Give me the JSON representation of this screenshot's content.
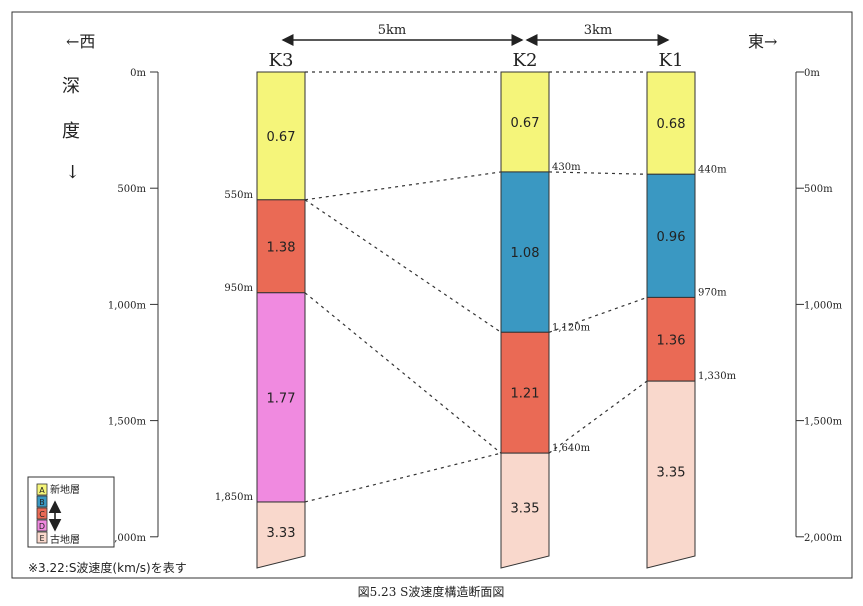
{
  "directions": {
    "west": "←西",
    "east": "東→"
  },
  "depth_label": [
    "深",
    "度",
    "↓"
  ],
  "distances": [
    {
      "label": "5km",
      "from": "K3",
      "to": "K2"
    },
    {
      "label": "3km",
      "from": "K2",
      "to": "K1"
    }
  ],
  "scale": {
    "max_depth_m": 2000,
    "ticks": [
      {
        "value": 0,
        "label": "0m"
      },
      {
        "value": 500,
        "label": "500m"
      },
      {
        "value": 1000,
        "label": "1,000m"
      },
      {
        "value": 1500,
        "label": "1,500m"
      },
      {
        "value": 2000,
        "label": "2,000m"
      }
    ]
  },
  "layer_colors": {
    "A": "#f5f57a",
    "B": "#3a98c2",
    "C": "#ea6a55",
    "D": "#f08ae0",
    "E": "#f9d8cc"
  },
  "boreholes": [
    {
      "id": "K3",
      "layers": [
        {
          "code": "A",
          "top": 0,
          "bottom": 550,
          "velocity": "0.67"
        },
        {
          "code": "C",
          "top": 550,
          "bottom": 950,
          "velocity": "1.38"
        },
        {
          "code": "D",
          "top": 950,
          "bottom": 1850,
          "velocity": "1.77"
        },
        {
          "code": "E",
          "top": 1850,
          "bottom": null,
          "velocity": "3.33"
        }
      ],
      "boundary_labels": [
        {
          "depth": 550,
          "label": "550m"
        },
        {
          "depth": 950,
          "label": "950m"
        },
        {
          "depth": 1850,
          "label": "1,850m"
        }
      ]
    },
    {
      "id": "K2",
      "layers": [
        {
          "code": "A",
          "top": 0,
          "bottom": 430,
          "velocity": "0.67"
        },
        {
          "code": "B",
          "top": 430,
          "bottom": 1120,
          "velocity": "1.08"
        },
        {
          "code": "C",
          "top": 1120,
          "bottom": 1640,
          "velocity": "1.21"
        },
        {
          "code": "E",
          "top": 1640,
          "bottom": null,
          "velocity": "3.35"
        }
      ],
      "boundary_labels": [
        {
          "depth": 430,
          "label": "430m"
        },
        {
          "depth": 1120,
          "label": "1,120m"
        },
        {
          "depth": 1640,
          "label": "1,640m"
        }
      ]
    },
    {
      "id": "K1",
      "layers": [
        {
          "code": "A",
          "top": 0,
          "bottom": 440,
          "velocity": "0.68"
        },
        {
          "code": "B",
          "top": 440,
          "bottom": 970,
          "velocity": "0.96"
        },
        {
          "code": "C",
          "top": 970,
          "bottom": 1330,
          "velocity": "1.36"
        },
        {
          "code": "E",
          "top": 1330,
          "bottom": null,
          "velocity": "3.35"
        }
      ],
      "boundary_labels": [
        {
          "depth": 440,
          "label": "440m"
        },
        {
          "depth": 970,
          "label": "970m"
        },
        {
          "depth": 1330,
          "label": "1,330m"
        }
      ]
    }
  ],
  "correlations": [
    {
      "from": "K3",
      "from_depth": 0,
      "to": "K2",
      "to_depth": 0
    },
    {
      "from": "K2",
      "from_depth": 0,
      "to": "K1",
      "to_depth": 0
    },
    {
      "from": "K3",
      "from_depth": 550,
      "to": "K2",
      "to_depth": 430
    },
    {
      "from": "K2",
      "from_depth": 430,
      "to": "K1",
      "to_depth": 440
    },
    {
      "from": "K3",
      "from_depth": 550,
      "to": "K2",
      "to_depth": 1120
    },
    {
      "from": "K2",
      "from_depth": 1120,
      "to": "K1",
      "to_depth": 970
    },
    {
      "from": "K3",
      "from_depth": 950,
      "to": "K2",
      "to_depth": 1640
    },
    {
      "from": "K2",
      "from_depth": 1640,
      "to": "K1",
      "to_depth": 1330
    },
    {
      "from": "K3",
      "from_depth": 1850,
      "to": "K2",
      "to_depth": 1640
    }
  ],
  "legend": {
    "codes": [
      "A",
      "B",
      "C",
      "D",
      "E"
    ],
    "new_label": "新地層",
    "old_label": "古地層"
  },
  "note": "※3.22:S波速度(km/s)を表す",
  "caption": "図5.23 S波速度構造断面図"
}
